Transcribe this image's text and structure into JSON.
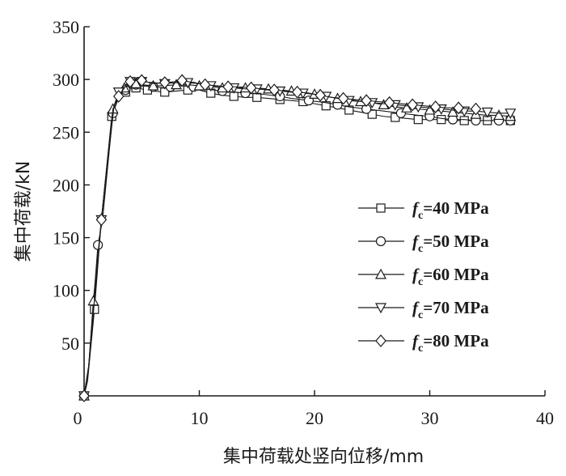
{
  "chart_data": {
    "type": "line",
    "title": "",
    "xlabel": "集中荷载处竖向位移/mm",
    "ylabel": "集中荷载/kN",
    "xlim": [
      0,
      40
    ],
    "ylim": [
      0,
      350
    ],
    "xticks": [
      0,
      10,
      20,
      30,
      40
    ],
    "yticks": [
      50,
      100,
      150,
      200,
      250,
      300,
      350
    ],
    "x_tick_labels": [
      "0",
      "10",
      "20",
      "30",
      "40"
    ],
    "y_tick_labels": [
      "50",
      "100",
      "150",
      "200",
      "250",
      "300",
      "350"
    ],
    "grid": false,
    "legend_position": "right",
    "series": [
      {
        "name": "fc=40 MPa",
        "label_main": "f",
        "label_sub": "c",
        "label_rest": "=40 MPa",
        "marker": "square",
        "x": [
          0,
          0.3,
          0.9,
          1.5,
          2.4,
          3.0,
          3.6,
          4.0,
          4.5,
          5.0,
          5.5,
          6.0,
          7.0,
          8.0,
          9.0,
          10.0,
          11.0,
          12.0,
          13.0,
          14.0,
          15.0,
          16.0,
          17.0,
          18.0,
          19.0,
          20.0,
          21.0,
          22.0,
          23.0,
          24.0,
          25.0,
          26.0,
          27.0,
          28.0,
          29.0,
          30.0,
          31.0,
          32.0,
          33.0,
          34.0,
          35.0,
          36.0,
          37.0
        ],
        "y": [
          0,
          14,
          82,
          167,
          265,
          283,
          288,
          291,
          292,
          291,
          290,
          289,
          288,
          289,
          290,
          290,
          287,
          285,
          284,
          283,
          283,
          282,
          281,
          280,
          279,
          277,
          275,
          273,
          271,
          269,
          267,
          265,
          264,
          263,
          262,
          262,
          262,
          261,
          261,
          261,
          261,
          261,
          261
        ]
      },
      {
        "name": "fc=50 MPa",
        "label_main": "f",
        "label_sub": "c",
        "label_rest": "=50 MPa",
        "marker": "circle",
        "x": [
          0,
          0.4,
          1.2,
          1.6,
          2.5,
          3.0,
          3.6,
          4.0,
          4.5,
          5.0,
          6.0,
          7.0,
          7.5,
          8.5,
          9.5,
          10.5,
          12.0,
          13.0,
          14.0,
          15.5,
          17.0,
          18.0,
          19.5,
          21.0,
          22.0,
          23.0,
          24.5,
          26.0,
          27.5,
          29.0,
          30.0,
          31.0,
          32.0,
          33.0,
          34.0,
          35.0,
          36.0,
          37.0
        ],
        "y": [
          0,
          28,
          143,
          167,
          268,
          283,
          290,
          294,
          295,
          294,
          293,
          292,
          293,
          294,
          293,
          291,
          289,
          288,
          287,
          286,
          284,
          282,
          280,
          278,
          276,
          274,
          272,
          270,
          268,
          266,
          265,
          263,
          262,
          262,
          261,
          261,
          261,
          261
        ]
      },
      {
        "name": "fc=60 MPa",
        "label_main": "f",
        "label_sub": "c",
        "label_rest": "=60 MPa",
        "marker": "triangle-up",
        "x": [
          0,
          0.4,
          0.8,
          1.5,
          2.5,
          3.0,
          3.5,
          4.0,
          4.5,
          5.0,
          6.0,
          7.0,
          8.0,
          9.0,
          10.0,
          11.0,
          12.0,
          13.0,
          14.0,
          15.0,
          16.0,
          17.0,
          18.0,
          19.0,
          20.0,
          21.0,
          22.0,
          23.0,
          24.0,
          25.0,
          26.0,
          27.0,
          28.0,
          29.0,
          30.0,
          31.0,
          32.0,
          33.0,
          34.0,
          35.0,
          36.0,
          37.0
        ],
        "y": [
          0,
          28,
          90,
          167,
          272,
          285,
          292,
          295,
          296,
          295,
          294,
          294,
          295,
          295,
          294,
          293,
          292,
          292,
          292,
          292,
          291,
          290,
          289,
          288,
          286,
          284,
          282,
          281,
          279,
          278,
          276,
          274,
          273,
          272,
          271,
          270,
          269,
          268,
          267,
          266,
          266,
          265
        ]
      },
      {
        "name": "fc=70 MPa",
        "label_main": "f",
        "label_sub": "c",
        "label_rest": "=70 MPa",
        "marker": "triangle-down",
        "x": [
          0,
          0.4,
          1.5,
          2.6,
          3.0,
          3.5,
          4.0,
          4.5,
          5.0,
          6.0,
          7.0,
          8.0,
          9.0,
          10.0,
          11.0,
          12.0,
          13.0,
          14.0,
          15.0,
          16.0,
          17.0,
          18.0,
          19.0,
          20.0,
          21.0,
          22.0,
          23.0,
          24.0,
          25.0,
          26.0,
          27.0,
          28.0,
          29.0,
          30.0,
          31.0,
          32.0,
          33.0,
          34.0,
          35.0,
          36.0,
          37.0
        ],
        "y": [
          0,
          28,
          167,
          275,
          288,
          294,
          298,
          299,
          298,
          297,
          296,
          297,
          297,
          296,
          294,
          293,
          292,
          291,
          291,
          290,
          289,
          288,
          287,
          286,
          284,
          282,
          280,
          279,
          278,
          277,
          276,
          275,
          274,
          273,
          272,
          271,
          270,
          270,
          269,
          268,
          268
        ]
      },
      {
        "name": "fc=80 MPa",
        "label_main": "f",
        "label_sub": "c",
        "label_rest": "=80 MPa",
        "marker": "diamond",
        "x": [
          0,
          0.4,
          1.5,
          2.5,
          3.0,
          3.5,
          4.0,
          4.5,
          5.0,
          6.0,
          7.0,
          8.0,
          8.5,
          9.5,
          10.5,
          11.5,
          12.5,
          13.5,
          14.5,
          15.5,
          16.5,
          17.5,
          18.5,
          19.5,
          20.5,
          21.5,
          22.5,
          23.5,
          24.5,
          25.5,
          26.5,
          27.5,
          28.5,
          29.5,
          30.5,
          31.5,
          32.5,
          33.5,
          34.0
        ],
        "y": [
          0,
          28,
          167,
          272,
          284,
          292,
          298,
          301,
          299,
          296,
          297,
          298,
          299,
          297,
          295,
          294,
          293,
          293,
          292,
          291,
          290,
          289,
          288,
          287,
          285,
          283,
          282,
          281,
          280,
          279,
          278,
          277,
          276,
          275,
          274,
          273,
          273,
          272,
          272
        ]
      }
    ]
  }
}
